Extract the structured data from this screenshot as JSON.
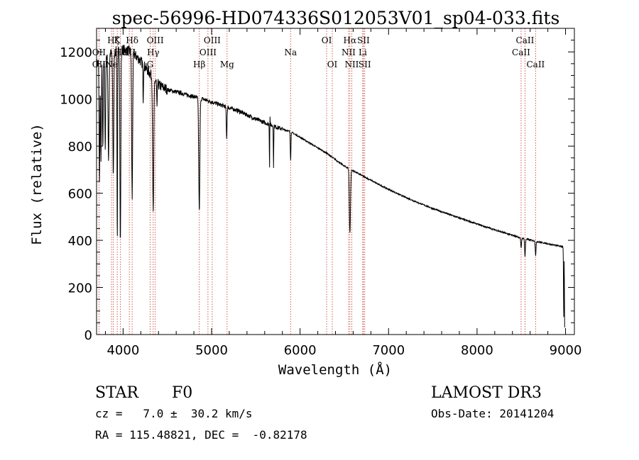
{
  "chart_data": {
    "type": "line",
    "title": "spec-56996-HD074336S012053V01_sp04-033.fits",
    "xlabel": "Wavelength (Å)",
    "ylabel": "Flux (relative)",
    "xlim": [
      3700,
      9100
    ],
    "ylim": [
      0,
      1300
    ],
    "xticks": [
      4000,
      5000,
      6000,
      7000,
      8000,
      9000
    ],
    "yticks": [
      0,
      200,
      400,
      600,
      800,
      1000,
      1200
    ],
    "continuum": {
      "x": [
        3700,
        3800,
        3900,
        4000,
        4100,
        4200,
        4300,
        4400,
        4500,
        4700,
        4900,
        5100,
        5300,
        5500,
        5700,
        5900,
        6100,
        6300,
        6500,
        6700,
        6900,
        7100,
        7300,
        7500,
        7700,
        7900,
        8100,
        8300,
        8500,
        8700,
        8900,
        8980
      ],
      "y": [
        1150,
        1180,
        1200,
        1210,
        1200,
        1160,
        1110,
        1060,
        1040,
        1020,
        1000,
        975,
        950,
        915,
        885,
        860,
        815,
        770,
        715,
        675,
        635,
        598,
        565,
        535,
        508,
        482,
        457,
        433,
        410,
        393,
        378,
        372
      ]
    },
    "absorption": [
      {
        "x": 3733,
        "depth": 500,
        "width": 6
      },
      {
        "x": 3750,
        "depth": 450,
        "width": 6
      },
      {
        "x": 3771,
        "depth": 400,
        "width": 6
      },
      {
        "x": 3798,
        "depth": 400,
        "width": 6
      },
      {
        "x": 3835,
        "depth": 450,
        "width": 8
      },
      {
        "x": 3889,
        "depth": 520,
        "width": 8
      },
      {
        "x": 3934,
        "depth": 800,
        "width": 5
      },
      {
        "x": 3969,
        "depth": 820,
        "width": 7
      },
      {
        "x": 4102,
        "depth": 620,
        "width": 8
      },
      {
        "x": 4227,
        "depth": 150,
        "width": 4
      },
      {
        "x": 4340,
        "depth": 580,
        "width": 9
      },
      {
        "x": 4383,
        "depth": 120,
        "width": 4
      },
      {
        "x": 4861,
        "depth": 480,
        "width": 9
      },
      {
        "x": 5170,
        "depth": 130,
        "width": 6
      },
      {
        "x": 5655,
        "depth": 210,
        "width": 3
      },
      {
        "x": 5700,
        "depth": 180,
        "width": 3
      },
      {
        "x": 5893,
        "depth": 120,
        "width": 5
      },
      {
        "x": 6563,
        "depth": 270,
        "width": 9
      },
      {
        "x": 8498,
        "depth": 45,
        "width": 6
      },
      {
        "x": 8542,
        "depth": 75,
        "width": 6
      },
      {
        "x": 8662,
        "depth": 60,
        "width": 6
      },
      {
        "x": 8980,
        "depth": 300,
        "width": 4
      }
    ],
    "emission": [
      {
        "x": 5658,
        "height": 80,
        "width": 3
      }
    ],
    "lines": [
      {
        "label": "Hζ",
        "x": 3889,
        "row": 0
      },
      {
        "label": "K",
        "x": 3934,
        "row": 0
      },
      {
        "label": "Hδ",
        "x": 4102,
        "row": 0
      },
      {
        "label": "OII",
        "x": 3727,
        "row": 1
      },
      {
        "label": "Hε",
        "x": 3970,
        "row": 1
      },
      {
        "label": "SII",
        "x": 4070,
        "row": 1
      },
      {
        "label": "OII",
        "x": 3727,
        "row": 2
      },
      {
        "label": "Ne",
        "x": 3869,
        "row": 2
      },
      {
        "label": "OIII",
        "x": 4363,
        "row": 0
      },
      {
        "label": "Hγ",
        "x": 4340,
        "row": 1
      },
      {
        "label": "G",
        "x": 4305,
        "row": 2
      },
      {
        "label": "OIII",
        "x": 5007,
        "row": 0
      },
      {
        "label": "OIII",
        "x": 4959,
        "row": 1
      },
      {
        "label": "Hβ",
        "x": 4861,
        "row": 2
      },
      {
        "label": "Mg",
        "x": 5175,
        "row": 2
      },
      {
        "label": "Na",
        "x": 5893,
        "row": 1
      },
      {
        "label": "OI",
        "x": 6300,
        "row": 0
      },
      {
        "label": "OI",
        "x": 6364,
        "row": 2
      },
      {
        "label": "Hα",
        "x": 6563,
        "row": 0
      },
      {
        "label": "SII",
        "x": 6716,
        "row": 0
      },
      {
        "label": "NII",
        "x": 6548,
        "row": 1
      },
      {
        "label": "Li",
        "x": 6708,
        "row": 1
      },
      {
        "label": "NII",
        "x": 6584,
        "row": 2
      },
      {
        "label": "SII",
        "x": 6731,
        "row": 2
      },
      {
        "label": "CaII",
        "x": 8542,
        "row": 0
      },
      {
        "label": "CaII",
        "x": 8498,
        "row": 1
      },
      {
        "label": "CaII",
        "x": 8662,
        "row": 2
      }
    ]
  },
  "info": {
    "object_class": "STAR",
    "subclass": "F0",
    "survey": "LAMOST DR3",
    "redshift": "cz =   7.0 ±  30.2 km/s",
    "obs_date": "Obs-Date: 20141204",
    "coords": "RA = 115.48821, DEC =  -0.82178"
  }
}
